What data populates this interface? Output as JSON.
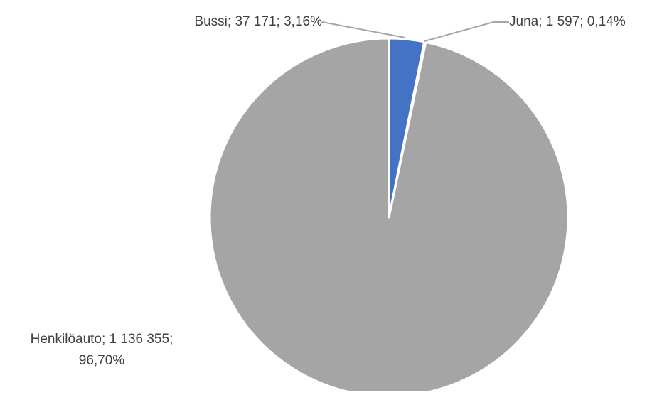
{
  "chart_data": {
    "type": "pie",
    "title": "",
    "start_category": "Bussi",
    "slices": [
      {
        "name": "Bussi",
        "value": 37171,
        "percent": 3.16,
        "color": "#4472C4",
        "label_lines": [
          "Bussi; 37 171; 3,16%"
        ]
      },
      {
        "name": "Juna",
        "value": 1597,
        "percent": 0.14,
        "color": "#ED7D31",
        "label_lines": [
          "Juna; 1 597; 0,14%"
        ]
      },
      {
        "name": "Henkilöauto",
        "value": 1136355,
        "percent": 96.7,
        "color": "#A5A5A5",
        "label_lines": [
          "Henkilöauto; 1 136 355;",
          "96,70%"
        ]
      }
    ],
    "legend": "none",
    "data_labels": "outside with leader lines",
    "slice_border_color": "#FFFFFF"
  }
}
